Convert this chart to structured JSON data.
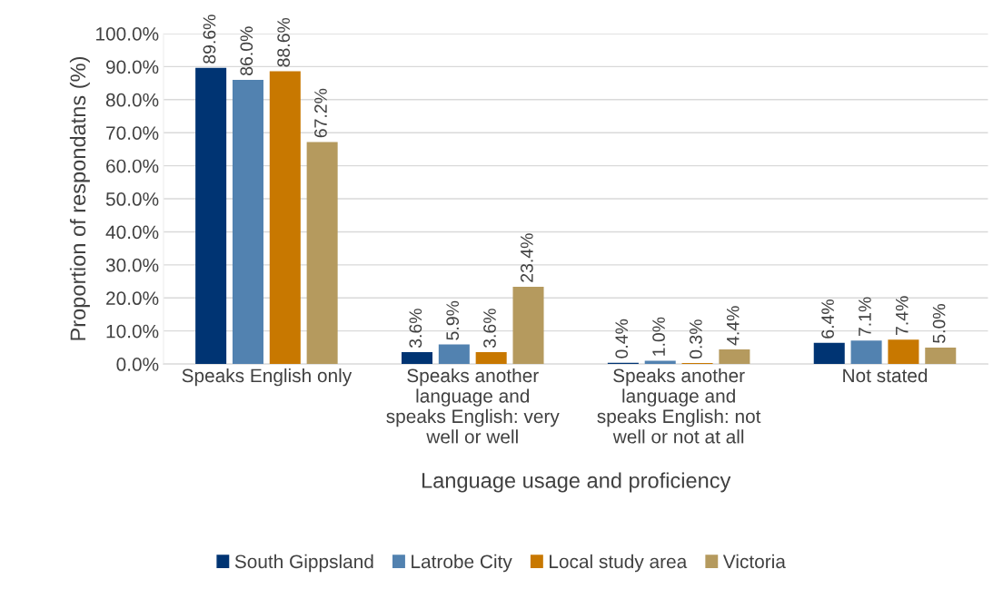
{
  "chart_data": {
    "type": "bar",
    "xlabel": "Language usage and proficiency",
    "ylabel": "Proportion of respondatns (%)",
    "categories": [
      "Speaks English only",
      "Speaks another\nlanguage and\nspeaks English: very\nwell or well",
      "Speaks another\nlanguage and\nspeaks English: not\nwell or not at all",
      "Not stated"
    ],
    "series": [
      {
        "name": "South Gippsland",
        "color": "#003473",
        "values": [
          89.6,
          3.6,
          0.4,
          6.4
        ],
        "value_labels": [
          "89.6%",
          "3.6%",
          "0.4%",
          "6.4%"
        ]
      },
      {
        "name": "Latrobe City",
        "color": "#5282b0",
        "values": [
          86.0,
          5.9,
          1.0,
          7.1
        ],
        "value_labels": [
          "86.0%",
          "5.9%",
          "1.0%",
          "7.1%"
        ]
      },
      {
        "name": "Local study area",
        "color": "#c87800",
        "values": [
          88.6,
          3.6,
          0.3,
          7.4
        ],
        "value_labels": [
          "88.6%",
          "3.6%",
          "0.3%",
          "7.4%"
        ]
      },
      {
        "name": "Victoria",
        "color": "#b59a5e",
        "values": [
          67.2,
          23.4,
          4.4,
          5.0
        ],
        "value_labels": [
          "67.2%",
          "23.4%",
          "4.4%",
          "5.0%"
        ]
      }
    ],
    "ylim": [
      0,
      100
    ],
    "yticks": [
      {
        "value": 0,
        "label": "0.0%"
      },
      {
        "value": 10,
        "label": "10.0%"
      },
      {
        "value": 20,
        "label": "20.0%"
      },
      {
        "value": 30,
        "label": "30.0%"
      },
      {
        "value": 40,
        "label": "40.0%"
      },
      {
        "value": 50,
        "label": "50.0%"
      },
      {
        "value": 60,
        "label": "60.0%"
      },
      {
        "value": 70,
        "label": "70.0%"
      },
      {
        "value": 80,
        "label": "80.0%"
      },
      {
        "value": 90,
        "label": "90.0%"
      },
      {
        "value": 100,
        "label": "100.0%"
      }
    ],
    "grid": "y",
    "legend": "bottom"
  }
}
